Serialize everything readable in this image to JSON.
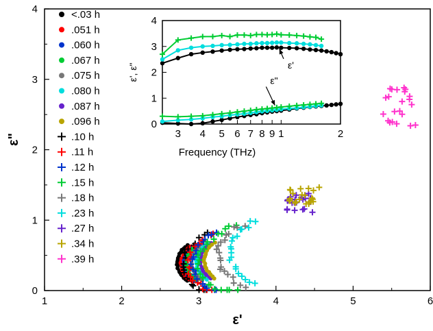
{
  "chart_data": {
    "type": "scatter",
    "main": {
      "xlabel": "ε'",
      "ylabel": "ε\"",
      "xlim": [
        1,
        6
      ],
      "ylim": [
        0,
        4
      ],
      "xticks": [
        "1",
        "2",
        "3",
        "4",
        "5",
        "6"
      ],
      "yticks": [
        "0",
        "1",
        "2",
        "3",
        "4"
      ],
      "legend_position": "left",
      "series": [
        {
          "name": "<.03 h",
          "marker": "dot",
          "color": "#000000",
          "arc": {
            "cx": 3.3,
            "cy": 0.39,
            "r": 0.58,
            "a0": 140,
            "a1": 220
          },
          "n": 20
        },
        {
          "name": ".051 h",
          "marker": "dot",
          "color": "#ff0000",
          "arc": {
            "cx": 3.34,
            "cy": 0.38,
            "r": 0.57,
            "a0": 140,
            "a1": 220
          },
          "n": 18
        },
        {
          "name": ".060 h",
          "marker": "dot",
          "color": "#0033cc",
          "arc": {
            "cx": 3.38,
            "cy": 0.38,
            "r": 0.57,
            "a0": 140,
            "a1": 220
          },
          "n": 18
        },
        {
          "name": ".067 h",
          "marker": "dot",
          "color": "#00cc33",
          "arc": {
            "cx": 3.42,
            "cy": 0.39,
            "r": 0.58,
            "a0": 140,
            "a1": 220
          },
          "n": 18
        },
        {
          "name": ".075 h",
          "marker": "dot",
          "color": "#777777",
          "arc": {
            "cx": 3.48,
            "cy": 0.4,
            "r": 0.58,
            "a0": 140,
            "a1": 220
          },
          "n": 18
        },
        {
          "name": ".080 h",
          "marker": "dot",
          "color": "#00dddd",
          "arc": {
            "cx": 3.55,
            "cy": 0.41,
            "r": 0.58,
            "a0": 140,
            "a1": 220
          },
          "n": 18
        },
        {
          "name": ".087 h",
          "marker": "dot",
          "color": "#6622cc",
          "arc": {
            "cx": 3.6,
            "cy": 0.42,
            "r": 0.58,
            "a0": 140,
            "a1": 220
          },
          "n": 18
        },
        {
          "name": ".096 h",
          "marker": "dot",
          "color": "#b8a400",
          "arc": {
            "cx": 3.65,
            "cy": 0.43,
            "r": 0.58,
            "a0": 140,
            "a1": 220
          },
          "n": 18
        },
        {
          "name": ".10 h",
          "marker": "plus",
          "color": "#000000",
          "arc": {
            "cx": 3.55,
            "cy": 0.38,
            "r": 0.75,
            "a0": 125,
            "a1": 235
          },
          "n": 20
        },
        {
          "name": ".11 h",
          "marker": "plus",
          "color": "#ff0000",
          "arc": {
            "cx": 3.62,
            "cy": 0.38,
            "r": 0.75,
            "a0": 125,
            "a1": 235
          },
          "n": 20
        },
        {
          "name": ".12 h",
          "marker": "plus",
          "color": "#0033cc",
          "arc": {
            "cx": 3.7,
            "cy": 0.4,
            "r": 0.78,
            "a0": 125,
            "a1": 235
          },
          "n": 20
        },
        {
          "name": ".15 h",
          "marker": "plus",
          "color": "#00cc33",
          "arc": {
            "cx": 3.85,
            "cy": 0.4,
            "r": 0.85,
            "a0": 115,
            "a1": 245
          },
          "n": 24
        },
        {
          "name": ".18 h",
          "marker": "plus",
          "color": "#777777",
          "arc": {
            "cx": 4.05,
            "cy": 0.5,
            "r": 0.8,
            "a0": 125,
            "a1": 235
          },
          "n": 20
        },
        {
          "name": ".23 h",
          "marker": "plus",
          "color": "#00dddd",
          "arc": {
            "cx": 4.2,
            "cy": 0.55,
            "r": 0.8,
            "a0": 125,
            "a1": 235
          },
          "n": 20
        },
        {
          "name": ".27 h",
          "marker": "plus",
          "color": "#6622cc",
          "cluster": {
            "cx": 4.3,
            "cy": 1.25,
            "sx": 0.18,
            "sy": 0.14
          },
          "n": 22
        },
        {
          "name": ".34 h",
          "marker": "plus",
          "color": "#b8a400",
          "cluster": {
            "cx": 4.35,
            "cy": 1.35,
            "sx": 0.22,
            "sy": 0.12
          },
          "n": 22
        },
        {
          "name": ".39 h",
          "marker": "plus",
          "color": "#ff33cc",
          "cluster": {
            "cx": 5.6,
            "cy": 2.6,
            "sx": 0.22,
            "sy": 0.3
          },
          "n": 22
        }
      ]
    },
    "inset": {
      "xlabel": "Frequency (THz)",
      "ylabel": "ε', ε\"",
      "xscale": "log",
      "xlim": [
        0.25,
        2
      ],
      "ylim": [
        0,
        4
      ],
      "xticks": [
        {
          "v": 0.3,
          "l": "3"
        },
        {
          "v": 0.4,
          "l": "4"
        },
        {
          "v": 0.5,
          "l": "5"
        },
        {
          "v": 0.6,
          "l": "6"
        },
        {
          "v": 0.7,
          "l": "7"
        },
        {
          "v": 0.8,
          "l": "8"
        },
        {
          "v": 0.9,
          "l": "9"
        },
        {
          "v": 1.0,
          "l": "1"
        },
        {
          "v": 2.0,
          "l": "2"
        }
      ],
      "yticks": [
        "0",
        "1",
        "2",
        "3",
        "4"
      ],
      "annotations": [
        {
          "text": "ε'",
          "x": 1.08,
          "y": 2.15,
          "arrow_to": [
            0.98,
            2.9
          ]
        },
        {
          "text": "ε\"",
          "x": 0.88,
          "y": 1.55,
          "arrow_to": [
            0.93,
            0.72
          ]
        }
      ],
      "series": [
        {
          "name": "eps_real_low",
          "color": "#000000",
          "marker": "dot",
          "x": [
            0.25,
            0.3,
            0.35,
            0.4,
            0.45,
            0.5,
            0.55,
            0.6,
            0.65,
            0.7,
            0.75,
            0.8,
            0.85,
            0.9,
            0.95,
            1.0,
            1.1,
            1.2,
            1.3,
            1.4,
            1.5,
            1.6,
            1.7,
            1.8,
            1.9,
            2.0
          ],
          "y": [
            2.35,
            2.55,
            2.7,
            2.76,
            2.8,
            2.84,
            2.87,
            2.89,
            2.9,
            2.92,
            2.93,
            2.95,
            2.95,
            2.95,
            2.96,
            2.95,
            2.94,
            2.93,
            2.91,
            2.88,
            2.86,
            2.84,
            2.81,
            2.78,
            2.74,
            2.7
          ]
        },
        {
          "name": "eps_real_mid",
          "color": "#00dddd",
          "marker": "dot",
          "x": [
            0.25,
            0.3,
            0.35,
            0.4,
            0.45,
            0.5,
            0.55,
            0.6,
            0.65,
            0.7,
            0.75,
            0.8,
            0.85,
            0.9,
            0.95,
            1.0,
            1.1,
            1.2,
            1.3,
            1.4,
            1.5,
            1.6
          ],
          "y": [
            2.5,
            2.85,
            2.95,
            3.0,
            3.02,
            3.05,
            3.06,
            3.08,
            3.1,
            3.1,
            3.12,
            3.13,
            3.13,
            3.14,
            3.15,
            3.15,
            3.13,
            3.12,
            3.1,
            3.08,
            3.05,
            3.02
          ]
        },
        {
          "name": "eps_real_high",
          "color": "#00cc33",
          "marker": "plus",
          "x": [
            0.25,
            0.3,
            0.35,
            0.4,
            0.45,
            0.5,
            0.55,
            0.6,
            0.65,
            0.7,
            0.75,
            0.8,
            0.85,
            0.9,
            0.95,
            1.0,
            1.1,
            1.2,
            1.3,
            1.4,
            1.5,
            1.6
          ],
          "y": [
            2.7,
            3.25,
            3.32,
            3.38,
            3.38,
            3.42,
            3.38,
            3.44,
            3.44,
            3.42,
            3.46,
            3.46,
            3.45,
            3.46,
            3.48,
            3.45,
            3.44,
            3.42,
            3.4,
            3.37,
            3.35,
            3.28
          ]
        },
        {
          "name": "eps_imag_low",
          "color": "#000000",
          "marker": "dot",
          "x": [
            0.25,
            0.3,
            0.35,
            0.4,
            0.45,
            0.5,
            0.55,
            0.6,
            0.65,
            0.7,
            0.75,
            0.8,
            0.85,
            0.9,
            0.95,
            1.0,
            1.1,
            1.2,
            1.3,
            1.4,
            1.5,
            1.6,
            1.7,
            1.8,
            1.9,
            2.0
          ],
          "y": [
            0.05,
            0.02,
            0.0,
            0.03,
            0.1,
            0.16,
            0.22,
            0.27,
            0.31,
            0.35,
            0.38,
            0.42,
            0.45,
            0.48,
            0.5,
            0.52,
            0.56,
            0.6,
            0.63,
            0.66,
            0.68,
            0.7,
            0.72,
            0.74,
            0.76,
            0.78
          ]
        },
        {
          "name": "eps_imag_mid",
          "color": "#00dddd",
          "marker": "dot",
          "x": [
            0.25,
            0.3,
            0.35,
            0.4,
            0.45,
            0.5,
            0.55,
            0.6,
            0.65,
            0.7,
            0.75,
            0.8,
            0.85,
            0.9,
            0.95,
            1.0,
            1.1,
            1.2,
            1.3,
            1.4,
            1.5,
            1.6
          ],
          "y": [
            0.1,
            0.15,
            0.18,
            0.22,
            0.27,
            0.3,
            0.34,
            0.37,
            0.4,
            0.43,
            0.46,
            0.49,
            0.51,
            0.53,
            0.55,
            0.57,
            0.6,
            0.62,
            0.65,
            0.67,
            0.7,
            0.72
          ]
        },
        {
          "name": "eps_imag_high",
          "color": "#00cc33",
          "marker": "plus",
          "x": [
            0.25,
            0.3,
            0.35,
            0.4,
            0.45,
            0.5,
            0.55,
            0.6,
            0.65,
            0.7,
            0.75,
            0.8,
            0.85,
            0.9,
            0.95,
            1.0,
            1.1,
            1.2,
            1.3,
            1.4,
            1.5,
            1.6
          ],
          "y": [
            0.3,
            0.28,
            0.3,
            0.32,
            0.36,
            0.4,
            0.43,
            0.47,
            0.5,
            0.53,
            0.56,
            0.58,
            0.6,
            0.62,
            0.64,
            0.66,
            0.69,
            0.72,
            0.74,
            0.76,
            0.78,
            0.8
          ]
        }
      ]
    }
  }
}
